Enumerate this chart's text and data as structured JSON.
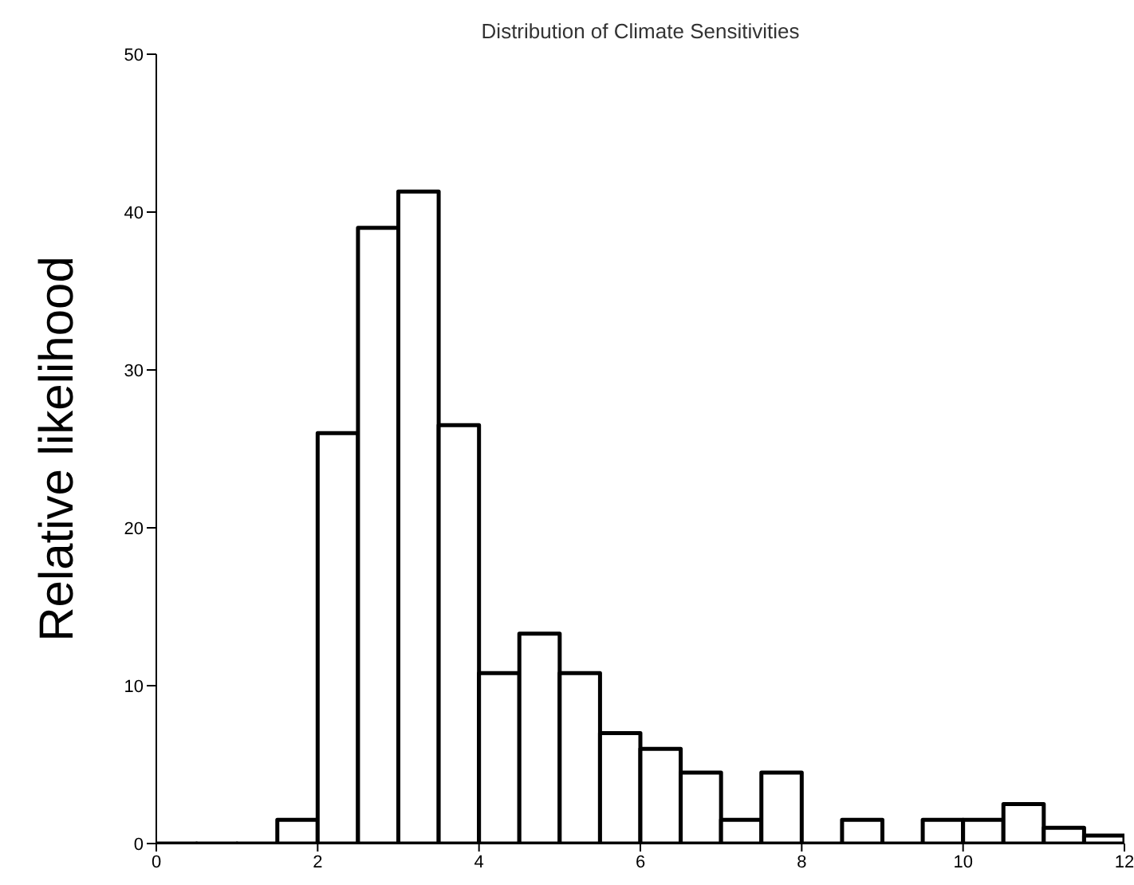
{
  "chart_data": {
    "type": "histogram",
    "title": "Distribution of Climate Sensitivities",
    "ylabel": "Relative likelihood",
    "bins": [
      0,
      0.5,
      1,
      1.5,
      2,
      2.5,
      3,
      3.5,
      4,
      4.5,
      5,
      5.5,
      6,
      6.5,
      7,
      7.5,
      8,
      8.5,
      9,
      9.5,
      10,
      10.5,
      11,
      11.5,
      12
    ],
    "values": [
      0,
      0,
      0,
      1.5,
      26,
      39,
      41.3,
      26.5,
      10.8,
      13.3,
      10.8,
      7,
      6,
      4.5,
      1.5,
      4.5,
      0,
      1.5,
      0,
      1.5,
      1.5,
      2.5,
      1,
      0.5
    ],
    "color": "#000000",
    "xlim": [
      0,
      12
    ],
    "xticks": [
      0,
      2,
      4,
      6,
      8,
      10,
      12
    ],
    "ylim": [
      0,
      50
    ],
    "yticks": [
      0,
      10,
      20,
      30,
      40,
      50
    ]
  }
}
